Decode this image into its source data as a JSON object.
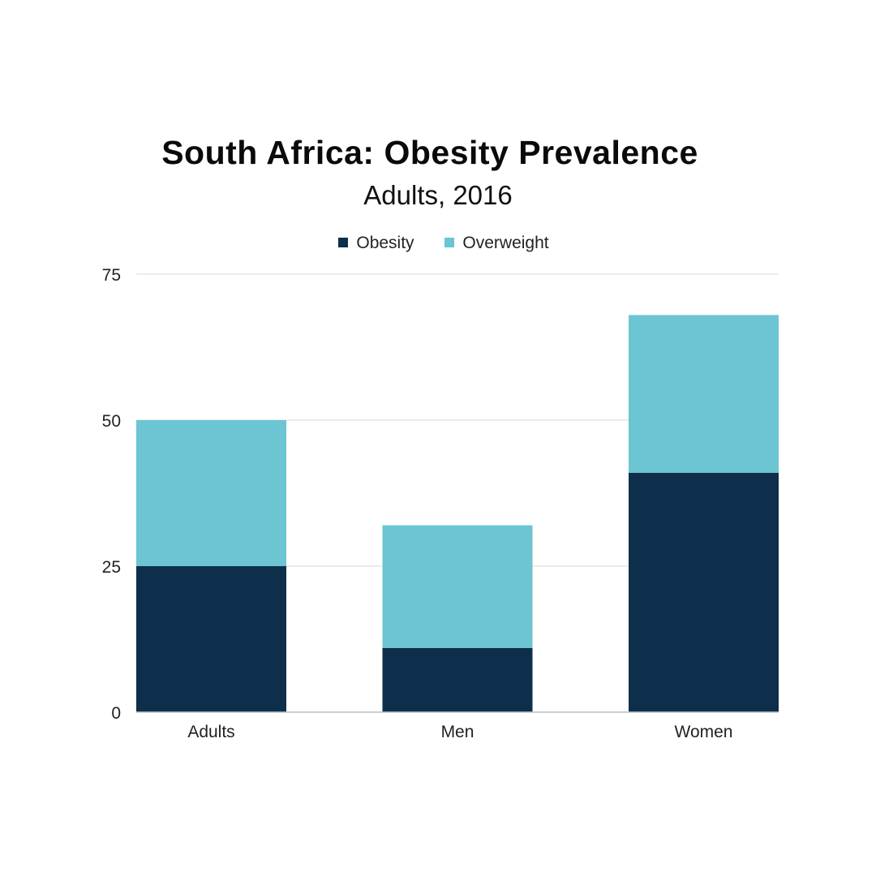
{
  "chart_data": {
    "type": "bar",
    "stacked": true,
    "title": "South Africa: Obesity Prevalence",
    "subtitle": "Adults, 2016",
    "categories": [
      "Adults",
      "Men",
      "Women"
    ],
    "series": [
      {
        "name": "Obesity",
        "color": "#0e2f4b",
        "values": [
          25,
          11,
          41
        ]
      },
      {
        "name": "Overweight",
        "color": "#6bc5d2",
        "values": [
          25,
          21,
          27
        ]
      }
    ],
    "ylim": [
      0,
      75
    ],
    "yticks": [
      0,
      25,
      50,
      75
    ],
    "grid": true,
    "legend": "top-center"
  }
}
